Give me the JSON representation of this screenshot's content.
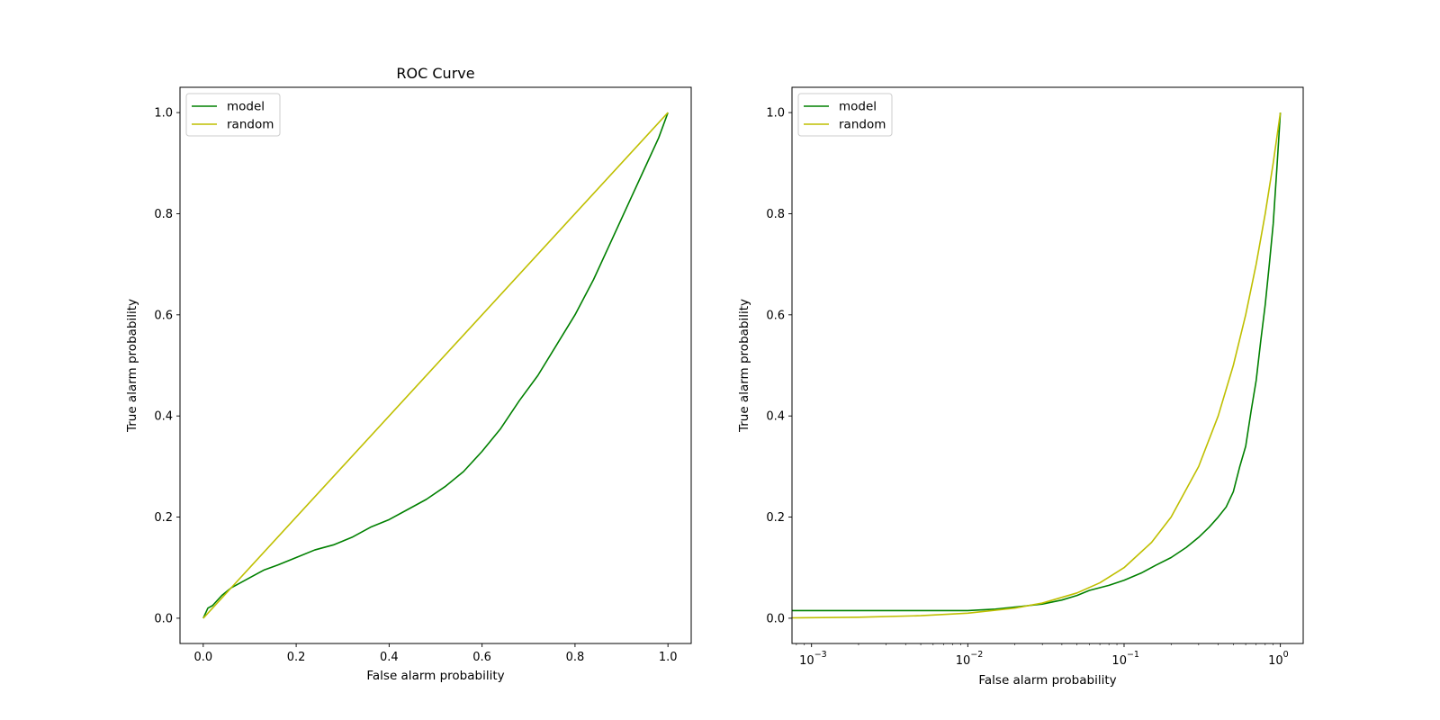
{
  "chart_data": [
    {
      "type": "line",
      "title": "ROC Curve",
      "xlabel": "False alarm probability",
      "ylabel": "True alarm probability",
      "xscale": "linear",
      "xlim": [
        -0.05,
        1.05
      ],
      "ylim": [
        -0.05,
        1.05
      ],
      "xticks": [
        {
          "v": 0.0,
          "label": "0.0"
        },
        {
          "v": 0.2,
          "label": "0.2"
        },
        {
          "v": 0.4,
          "label": "0.4"
        },
        {
          "v": 0.6,
          "label": "0.6"
        },
        {
          "v": 0.8,
          "label": "0.8"
        },
        {
          "v": 1.0,
          "label": "1.0"
        }
      ],
      "yticks": [
        {
          "v": 0.0,
          "label": "0.0"
        },
        {
          "v": 0.2,
          "label": "0.2"
        },
        {
          "v": 0.4,
          "label": "0.4"
        },
        {
          "v": 0.6,
          "label": "0.6"
        },
        {
          "v": 0.8,
          "label": "0.8"
        },
        {
          "v": 1.0,
          "label": "1.0"
        }
      ],
      "grid": false,
      "legend": "upper-left",
      "series": [
        {
          "name": "model",
          "color": "#008000",
          "x": [
            0.0,
            0.01,
            0.02,
            0.04,
            0.06,
            0.08,
            0.1,
            0.13,
            0.16,
            0.2,
            0.24,
            0.28,
            0.32,
            0.36,
            0.4,
            0.44,
            0.48,
            0.52,
            0.56,
            0.6,
            0.64,
            0.68,
            0.72,
            0.76,
            0.8,
            0.84,
            0.88,
            0.92,
            0.95,
            0.98,
            1.0
          ],
          "y": [
            0.0,
            0.02,
            0.025,
            0.045,
            0.06,
            0.07,
            0.08,
            0.095,
            0.105,
            0.12,
            0.135,
            0.145,
            0.16,
            0.18,
            0.195,
            0.215,
            0.235,
            0.26,
            0.29,
            0.33,
            0.375,
            0.43,
            0.48,
            0.54,
            0.6,
            0.67,
            0.75,
            0.83,
            0.89,
            0.95,
            1.0
          ]
        },
        {
          "name": "random",
          "color": "#bfbf00",
          "x": [
            0.0,
            1.0
          ],
          "y": [
            0.0,
            1.0
          ]
        }
      ]
    },
    {
      "type": "line",
      "title": "",
      "xlabel": "False alarm probability",
      "ylabel": "True alarm probability",
      "xscale": "log",
      "xlim": [
        0.00075,
        1.4
      ],
      "ylim": [
        -0.05,
        1.05
      ],
      "xticks": [
        {
          "v": 0.001,
          "base": "10",
          "exp": "−3"
        },
        {
          "v": 0.01,
          "base": "10",
          "exp": "−2"
        },
        {
          "v": 0.1,
          "base": "10",
          "exp": "−1"
        },
        {
          "v": 1,
          "base": "10",
          "exp": "0"
        }
      ],
      "yticks": [
        {
          "v": 0.0,
          "label": "0.0"
        },
        {
          "v": 0.2,
          "label": "0.2"
        },
        {
          "v": 0.4,
          "label": "0.4"
        },
        {
          "v": 0.6,
          "label": "0.6"
        },
        {
          "v": 0.8,
          "label": "0.8"
        },
        {
          "v": 1.0,
          "label": "1.0"
        }
      ],
      "grid": false,
      "legend": "upper-left",
      "series": [
        {
          "name": "model",
          "color": "#008000",
          "x": [
            0.00075,
            0.005,
            0.01,
            0.015,
            0.02,
            0.03,
            0.04,
            0.05,
            0.06,
            0.08,
            0.1,
            0.13,
            0.16,
            0.2,
            0.25,
            0.3,
            0.35,
            0.4,
            0.45,
            0.5,
            0.55,
            0.6,
            0.65,
            0.7,
            0.75,
            0.8,
            0.85,
            0.9,
            0.95,
            1.0
          ],
          "y": [
            0.015,
            0.015,
            0.015,
            0.018,
            0.022,
            0.028,
            0.036,
            0.045,
            0.055,
            0.065,
            0.075,
            0.09,
            0.105,
            0.12,
            0.14,
            0.16,
            0.18,
            0.2,
            0.22,
            0.25,
            0.3,
            0.34,
            0.41,
            0.47,
            0.55,
            0.62,
            0.7,
            0.78,
            0.89,
            1.0
          ]
        },
        {
          "name": "random",
          "color": "#bfbf00",
          "x": [
            0.00075,
            0.002,
            0.005,
            0.01,
            0.02,
            0.03,
            0.05,
            0.07,
            0.1,
            0.15,
            0.2,
            0.3,
            0.4,
            0.5,
            0.6,
            0.7,
            0.8,
            0.9,
            1.0
          ],
          "y": [
            0.00075,
            0.002,
            0.005,
            0.01,
            0.02,
            0.03,
            0.05,
            0.07,
            0.1,
            0.15,
            0.2,
            0.3,
            0.4,
            0.5,
            0.6,
            0.7,
            0.8,
            0.9,
            1.0
          ]
        }
      ]
    }
  ]
}
